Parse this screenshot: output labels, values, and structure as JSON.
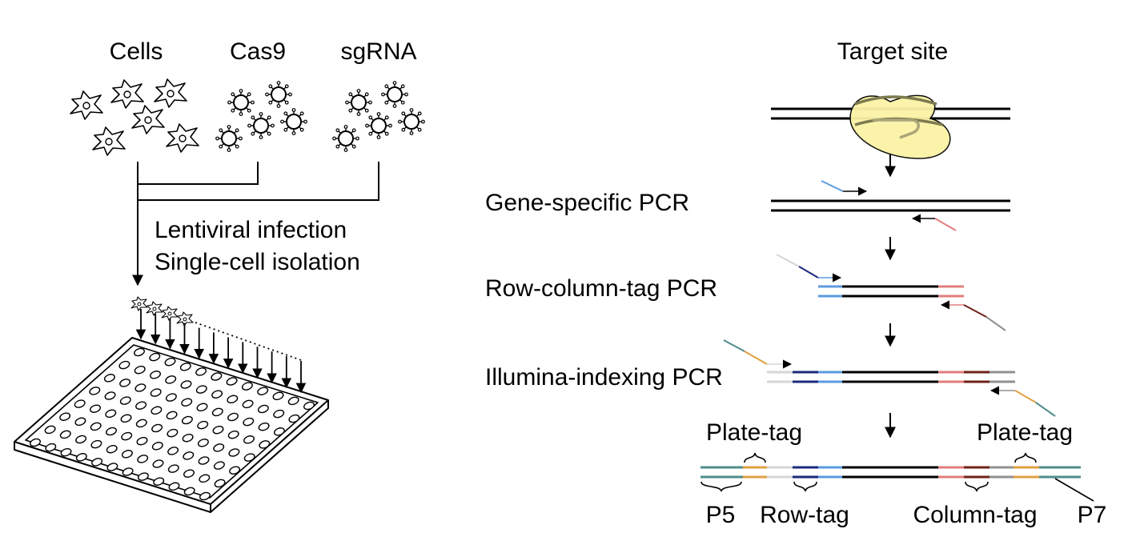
{
  "left_panel": {
    "inputs": {
      "cells": "Cells",
      "cas9": "Cas9",
      "sgrna": "sgRNA"
    },
    "process": {
      "line1": "Lentiviral infection",
      "line2": "Single-cell isolation"
    }
  },
  "right_panel": {
    "target_site": "Target site",
    "steps": {
      "gene_specific": "Gene-specific PCR",
      "row_column": "Row-column-tag PCR",
      "illumina": "Illumina-indexing PCR"
    },
    "product_labels": {
      "plate_tag_left": "Plate-tag",
      "plate_tag_right": "Plate-tag",
      "p5": "P5",
      "row_tag": "Row-tag",
      "column_tag": "Column-tag",
      "p7": "P7"
    }
  },
  "colors": {
    "light_blue": "#5b9be0",
    "navy": "#1b2a7a",
    "pink": "#e27d7d",
    "dark_red": "#6e2218",
    "light_gray": "#d6d6d6",
    "mid_gray": "#909090",
    "teal": "#4e8d8a",
    "orange": "#e0a040",
    "cas9_fill": "#fbf3a6"
  }
}
